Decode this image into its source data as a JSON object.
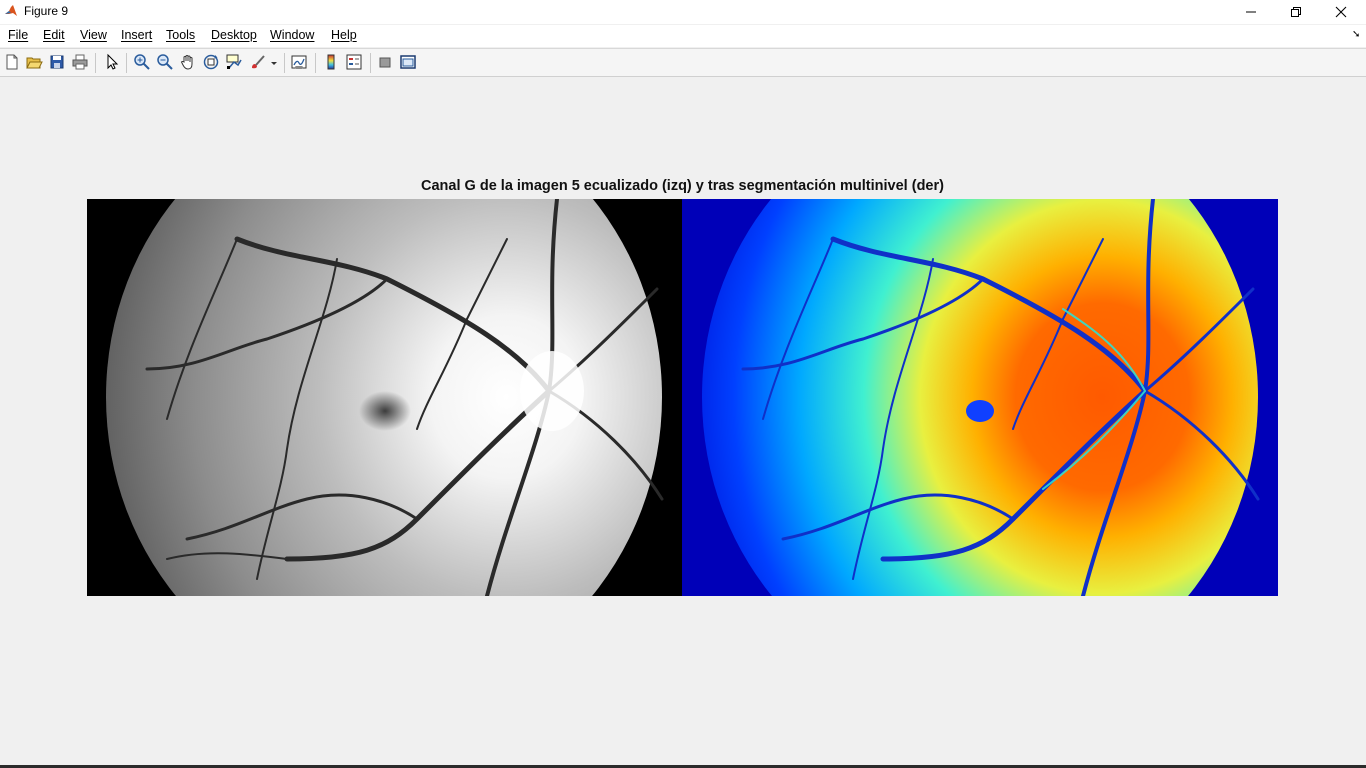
{
  "window": {
    "title": "Figure 9",
    "minimize_label": "—",
    "maximize_label": "❐",
    "close_label": "✕"
  },
  "menu": {
    "items": [
      "File",
      "Edit",
      "View",
      "Insert",
      "Tools",
      "Desktop",
      "Window",
      "Help"
    ]
  },
  "toolbar": {
    "buttons": [
      "new-figure-icon",
      "open-file-icon",
      "save-icon",
      "print-icon",
      "edit-plot-arrow-icon",
      "zoom-in-icon",
      "zoom-out-icon",
      "pan-hand-icon",
      "rotate-3d-icon",
      "data-cursor-icon",
      "brush-icon",
      "link-plot-icon",
      "insert-colorbar-icon",
      "insert-legend-icon",
      "hide-plot-tools-icon",
      "show-plot-tools-icon"
    ]
  },
  "figure": {
    "title": "Canal G de la imagen 5 ecualizado (izq) y tras segmentación multinivel (der)",
    "left_image": "retina-green-channel-equalized-grayscale",
    "right_image": "retina-multilevel-segmentation-jet-colormap"
  },
  "colors": {
    "background": "#f0f0f0",
    "jet_dark_blue": "#0000b8",
    "jet_orange": "#ff5a00"
  }
}
